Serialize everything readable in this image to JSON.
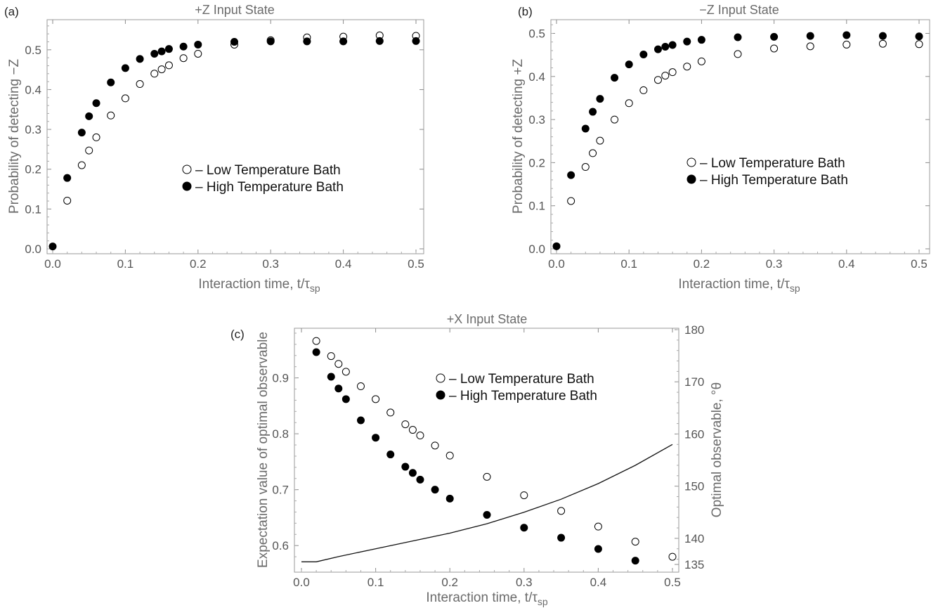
{
  "chart_data": [
    {
      "panel_label": "(a)",
      "type": "scatter",
      "title": "+Z Input State",
      "xlabel": "Interaction time, t/τ",
      "xlabel_sub": "sp",
      "ylabel": "Probability of detecting −Z",
      "xlim": [
        0,
        0.5
      ],
      "ylim": [
        0,
        0.565
      ],
      "xticks": [
        "0.0",
        "0.1",
        "0.2",
        "0.3",
        "0.4",
        "0.5"
      ],
      "yticks": [
        "0.0",
        "0.1",
        "0.2",
        "0.3",
        "0.4",
        "0.5"
      ],
      "x": [
        0.0,
        0.02,
        0.04,
        0.05,
        0.06,
        0.08,
        0.1,
        0.12,
        0.14,
        0.15,
        0.16,
        0.18,
        0.2,
        0.25,
        0.3,
        0.35,
        0.4,
        0.45,
        0.5
      ],
      "legend_position": "center-right",
      "series": [
        {
          "name": "– Low Temperature Bath",
          "marker": "open-circle",
          "values": [
            null,
            0.121,
            0.21,
            0.247,
            0.28,
            0.335,
            0.378,
            0.414,
            0.44,
            0.451,
            0.461,
            0.479,
            0.49,
            0.513,
            0.524,
            0.531,
            0.533,
            0.536,
            0.535
          ]
        },
        {
          "name": "– High Temperature Bath",
          "marker": "filled-circle",
          "values": [
            0.006,
            0.178,
            0.292,
            0.333,
            0.366,
            0.418,
            0.454,
            0.477,
            0.49,
            0.496,
            0.502,
            0.508,
            0.513,
            0.52,
            0.521,
            0.521,
            0.521,
            0.522,
            0.522
          ]
        }
      ]
    },
    {
      "panel_label": "(b)",
      "type": "scatter",
      "title": "−Z Input State",
      "xlabel": "Interaction time, t/τ",
      "xlabel_sub": "sp",
      "ylabel": "Probability of detecting +Z",
      "xlim": [
        0,
        0.5
      ],
      "ylim": [
        0,
        0.522
      ],
      "xticks": [
        "0.0",
        "0.1",
        "0.2",
        "0.3",
        "0.4",
        "0.5"
      ],
      "yticks": [
        "0.0",
        "0.1",
        "0.2",
        "0.3",
        "0.4",
        "0.5"
      ],
      "x": [
        0.0,
        0.02,
        0.04,
        0.05,
        0.06,
        0.08,
        0.1,
        0.12,
        0.14,
        0.15,
        0.16,
        0.18,
        0.2,
        0.25,
        0.3,
        0.35,
        0.4,
        0.45,
        0.5
      ],
      "legend_position": "center-right",
      "series": [
        {
          "name": "– Low Temperature Bath",
          "marker": "open-circle",
          "values": [
            null,
            0.111,
            0.19,
            0.222,
            0.251,
            0.3,
            0.338,
            0.368,
            0.392,
            0.402,
            0.41,
            0.423,
            0.435,
            0.452,
            0.465,
            0.47,
            0.474,
            0.476,
            0.475
          ]
        },
        {
          "name": "– High Temperature Bath",
          "marker": "filled-circle",
          "values": [
            0.006,
            0.171,
            0.279,
            0.318,
            0.348,
            0.397,
            0.428,
            0.451,
            0.463,
            0.469,
            0.473,
            0.481,
            0.485,
            0.491,
            0.492,
            0.494,
            0.496,
            0.494,
            0.493
          ]
        }
      ]
    },
    {
      "panel_label": "(c)",
      "type": "scatter",
      "title": "+X Input State",
      "xlabel": "Interaction time, t/τ",
      "xlabel_sub": "sp",
      "ylabel": "Expectation value of optimal observable",
      "ylabel_right": "Optimal observable, °θ",
      "xlim": [
        0,
        0.5
      ],
      "ylim": [
        0.56,
        0.985
      ],
      "ylim_right": [
        135,
        180
      ],
      "xticks": [
        "0.0",
        "0.1",
        "0.2",
        "0.3",
        "0.4",
        "0.5"
      ],
      "yticks": [
        "0.6",
        "0.7",
        "0.8",
        "0.9"
      ],
      "yticks_right": [
        "135",
        "140",
        "150",
        "160",
        "170",
        "180"
      ],
      "x": [
        0.02,
        0.04,
        0.05,
        0.06,
        0.08,
        0.1,
        0.12,
        0.14,
        0.15,
        0.16,
        0.18,
        0.2,
        0.25,
        0.3,
        0.35,
        0.4,
        0.45,
        0.5
      ],
      "legend_position": "top-right",
      "series": [
        {
          "name": "– Low Temperature Bath",
          "marker": "open-circle",
          "values": [
            0.966,
            0.939,
            0.925,
            0.911,
            0.885,
            0.862,
            0.838,
            0.817,
            0.807,
            0.797,
            0.779,
            0.761,
            0.723,
            0.69,
            0.662,
            0.634,
            0.607,
            0.58
          ]
        },
        {
          "name": "– High Temperature Bath",
          "marker": "filled-circle",
          "values": [
            0.946,
            0.902,
            0.881,
            0.862,
            0.824,
            0.793,
            0.763,
            0.741,
            0.73,
            0.718,
            0.7,
            0.684,
            0.655,
            0.632,
            0.614,
            0.594,
            0.573,
            null
          ]
        }
      ],
      "line_series": {
        "axis": "right",
        "x": [
          0.0,
          0.02,
          0.05,
          0.1,
          0.15,
          0.2,
          0.25,
          0.3,
          0.35,
          0.4,
          0.45,
          0.5
        ],
        "values": [
          135.5,
          135.5,
          136.5,
          138.0,
          139.5,
          141.0,
          142.8,
          145.0,
          147.5,
          150.5,
          154.0,
          158.0
        ]
      }
    }
  ]
}
